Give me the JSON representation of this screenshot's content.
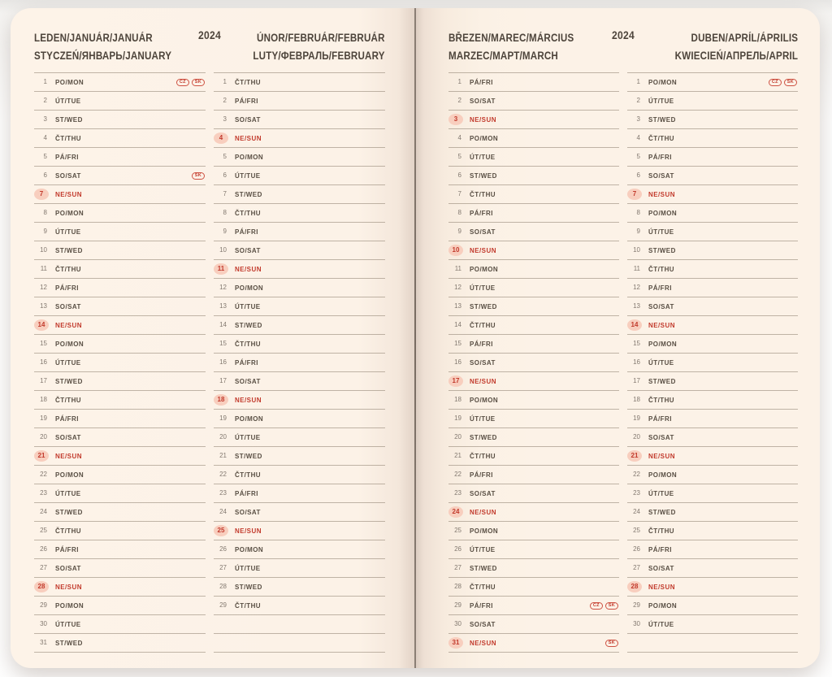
{
  "year": "2024",
  "badge_labels": [
    "CZ",
    "SK"
  ],
  "colors": {
    "paper": "#fcf2e7",
    "ink": "#4e453c",
    "rule_line": "#a89c90",
    "red_accent": "#c23a2c",
    "sunday_highlight": "#f8cebe"
  },
  "weekday_labels": [
    "PO/MON",
    "ÚT/TUE",
    "ST/WED",
    "ČT/THU",
    "PÁ/FRI",
    "SO/SAT",
    "NE/SUN"
  ],
  "pages": [
    {
      "side": "left",
      "year_label": "2024",
      "months": [
        {
          "title_line1": "LEDEN/JANUÁR/JANUÁR",
          "title_line2": "STYCZEŃ/ЯНВАРЬ/JANUARY",
          "rows": [
            {
              "d": 1,
              "w": "PO/MON",
              "b": [
                "CZ",
                "SK"
              ]
            },
            {
              "d": 2,
              "w": "ÚT/TUE"
            },
            {
              "d": 3,
              "w": "ST/WED"
            },
            {
              "d": 4,
              "w": "ČT/THU"
            },
            {
              "d": 5,
              "w": "PÁ/FRI"
            },
            {
              "d": 6,
              "w": "SO/SAT",
              "b": [
                "SK"
              ]
            },
            {
              "d": 7,
              "w": "NE/SUN",
              "s": true
            },
            {
              "d": 8,
              "w": "PO/MON"
            },
            {
              "d": 9,
              "w": "ÚT/TUE"
            },
            {
              "d": 10,
              "w": "ST/WED"
            },
            {
              "d": 11,
              "w": "ČT/THU"
            },
            {
              "d": 12,
              "w": "PÁ/FRI"
            },
            {
              "d": 13,
              "w": "SO/SAT"
            },
            {
              "d": 14,
              "w": "NE/SUN",
              "s": true
            },
            {
              "d": 15,
              "w": "PO/MON"
            },
            {
              "d": 16,
              "w": "ÚT/TUE"
            },
            {
              "d": 17,
              "w": "ST/WED"
            },
            {
              "d": 18,
              "w": "ČT/THU"
            },
            {
              "d": 19,
              "w": "PÁ/FRI"
            },
            {
              "d": 20,
              "w": "SO/SAT"
            },
            {
              "d": 21,
              "w": "NE/SUN",
              "s": true
            },
            {
              "d": 22,
              "w": "PO/MON"
            },
            {
              "d": 23,
              "w": "ÚT/TUE"
            },
            {
              "d": 24,
              "w": "ST/WED"
            },
            {
              "d": 25,
              "w": "ČT/THU"
            },
            {
              "d": 26,
              "w": "PÁ/FRI"
            },
            {
              "d": 27,
              "w": "SO/SAT"
            },
            {
              "d": 28,
              "w": "NE/SUN",
              "s": true
            },
            {
              "d": 29,
              "w": "PO/MON"
            },
            {
              "d": 30,
              "w": "ÚT/TUE"
            },
            {
              "d": 31,
              "w": "ST/WED"
            }
          ]
        },
        {
          "title_line1": "ÚNOR/FEBRUÁR/FEBRUÁR",
          "title_line2": "LUTY/ФЕВРАЛЬ/FEBRUARY",
          "rows": [
            {
              "d": 1,
              "w": "ČT/THU"
            },
            {
              "d": 2,
              "w": "PÁ/FRI"
            },
            {
              "d": 3,
              "w": "SO/SAT"
            },
            {
              "d": 4,
              "w": "NE/SUN",
              "s": true
            },
            {
              "d": 5,
              "w": "PO/MON"
            },
            {
              "d": 6,
              "w": "ÚT/TUE"
            },
            {
              "d": 7,
              "w": "ST/WED"
            },
            {
              "d": 8,
              "w": "ČT/THU"
            },
            {
              "d": 9,
              "w": "PÁ/FRI"
            },
            {
              "d": 10,
              "w": "SO/SAT"
            },
            {
              "d": 11,
              "w": "NE/SUN",
              "s": true
            },
            {
              "d": 12,
              "w": "PO/MON"
            },
            {
              "d": 13,
              "w": "ÚT/TUE"
            },
            {
              "d": 14,
              "w": "ST/WED"
            },
            {
              "d": 15,
              "w": "ČT/THU"
            },
            {
              "d": 16,
              "w": "PÁ/FRI"
            },
            {
              "d": 17,
              "w": "SO/SAT"
            },
            {
              "d": 18,
              "w": "NE/SUN",
              "s": true
            },
            {
              "d": 19,
              "w": "PO/MON"
            },
            {
              "d": 20,
              "w": "ÚT/TUE"
            },
            {
              "d": 21,
              "w": "ST/WED"
            },
            {
              "d": 22,
              "w": "ČT/THU"
            },
            {
              "d": 23,
              "w": "PÁ/FRI"
            },
            {
              "d": 24,
              "w": "SO/SAT"
            },
            {
              "d": 25,
              "w": "NE/SUN",
              "s": true
            },
            {
              "d": 26,
              "w": "PO/MON"
            },
            {
              "d": 27,
              "w": "ÚT/TUE"
            },
            {
              "d": 28,
              "w": "ST/WED"
            },
            {
              "d": 29,
              "w": "ČT/THU"
            },
            {},
            {}
          ]
        }
      ]
    },
    {
      "side": "right",
      "year_label": "2024",
      "months": [
        {
          "title_line1": "BŘEZEN/MAREC/MÁRCIUS",
          "title_line2": "MARZEC/МАРТ/MARCH",
          "rows": [
            {
              "d": 1,
              "w": "PÁ/FRI"
            },
            {
              "d": 2,
              "w": "SO/SAT"
            },
            {
              "d": 3,
              "w": "NE/SUN",
              "s": true
            },
            {
              "d": 4,
              "w": "PO/MON"
            },
            {
              "d": 5,
              "w": "ÚT/TUE"
            },
            {
              "d": 6,
              "w": "ST/WED"
            },
            {
              "d": 7,
              "w": "ČT/THU"
            },
            {
              "d": 8,
              "w": "PÁ/FRI"
            },
            {
              "d": 9,
              "w": "SO/SAT"
            },
            {
              "d": 10,
              "w": "NE/SUN",
              "s": true
            },
            {
              "d": 11,
              "w": "PO/MON"
            },
            {
              "d": 12,
              "w": "ÚT/TUE"
            },
            {
              "d": 13,
              "w": "ST/WED"
            },
            {
              "d": 14,
              "w": "ČT/THU"
            },
            {
              "d": 15,
              "w": "PÁ/FRI"
            },
            {
              "d": 16,
              "w": "SO/SAT"
            },
            {
              "d": 17,
              "w": "NE/SUN",
              "s": true
            },
            {
              "d": 18,
              "w": "PO/MON"
            },
            {
              "d": 19,
              "w": "ÚT/TUE"
            },
            {
              "d": 20,
              "w": "ST/WED"
            },
            {
              "d": 21,
              "w": "ČT/THU"
            },
            {
              "d": 22,
              "w": "PÁ/FRI"
            },
            {
              "d": 23,
              "w": "SO/SAT"
            },
            {
              "d": 24,
              "w": "NE/SUN",
              "s": true
            },
            {
              "d": 25,
              "w": "PO/MON"
            },
            {
              "d": 26,
              "w": "ÚT/TUE"
            },
            {
              "d": 27,
              "w": "ST/WED"
            },
            {
              "d": 28,
              "w": "ČT/THU"
            },
            {
              "d": 29,
              "w": "PÁ/FRI",
              "b": [
                "CZ",
                "SK"
              ]
            },
            {
              "d": 30,
              "w": "SO/SAT"
            },
            {
              "d": 31,
              "w": "NE/SUN",
              "s": true,
              "b": [
                "SK"
              ]
            }
          ]
        },
        {
          "title_line1": "DUBEN/APRÍL/ÁPRILIS",
          "title_line2": "KWIECIEŃ/АПРЕЛЬ/APRIL",
          "rows": [
            {
              "d": 1,
              "w": "PO/MON",
              "b": [
                "CZ",
                "SK"
              ]
            },
            {
              "d": 2,
              "w": "ÚT/TUE"
            },
            {
              "d": 3,
              "w": "ST/WED"
            },
            {
              "d": 4,
              "w": "ČT/THU"
            },
            {
              "d": 5,
              "w": "PÁ/FRI"
            },
            {
              "d": 6,
              "w": "SO/SAT"
            },
            {
              "d": 7,
              "w": "NE/SUN",
              "s": true
            },
            {
              "d": 8,
              "w": "PO/MON"
            },
            {
              "d": 9,
              "w": "ÚT/TUE"
            },
            {
              "d": 10,
              "w": "ST/WED"
            },
            {
              "d": 11,
              "w": "ČT/THU"
            },
            {
              "d": 12,
              "w": "PÁ/FRI"
            },
            {
              "d": 13,
              "w": "SO/SAT"
            },
            {
              "d": 14,
              "w": "NE/SUN",
              "s": true
            },
            {
              "d": 15,
              "w": "PO/MON"
            },
            {
              "d": 16,
              "w": "ÚT/TUE"
            },
            {
              "d": 17,
              "w": "ST/WED"
            },
            {
              "d": 18,
              "w": "ČT/THU"
            },
            {
              "d": 19,
              "w": "PÁ/FRI"
            },
            {
              "d": 20,
              "w": "SO/SAT"
            },
            {
              "d": 21,
              "w": "NE/SUN",
              "s": true
            },
            {
              "d": 22,
              "w": "PO/MON"
            },
            {
              "d": 23,
              "w": "ÚT/TUE"
            },
            {
              "d": 24,
              "w": "ST/WED"
            },
            {
              "d": 25,
              "w": "ČT/THU"
            },
            {
              "d": 26,
              "w": "PÁ/FRI"
            },
            {
              "d": 27,
              "w": "SO/SAT"
            },
            {
              "d": 28,
              "w": "NE/SUN",
              "s": true
            },
            {
              "d": 29,
              "w": "PO/MON"
            },
            {
              "d": 30,
              "w": "ÚT/TUE"
            },
            {}
          ]
        }
      ]
    }
  ]
}
